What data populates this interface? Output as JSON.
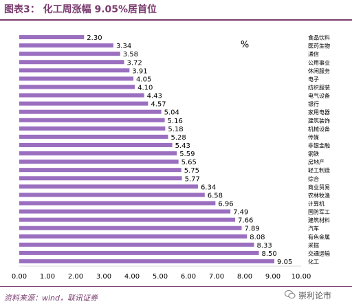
{
  "header": {
    "title": "图表3：  化工周涨幅 9.05%居首位"
  },
  "footer": {
    "source": "资料来源：wind，联讯证券"
  },
  "watermark": {
    "text": "崇利论市",
    "icon": "wechat-icon"
  },
  "colors": {
    "bar": "#9b6fc0",
    "accent": "#7a3b6e",
    "text": "#000000"
  },
  "chart_data": {
    "type": "bar",
    "orientation": "horizontal",
    "unit_label": "%",
    "categories": [
      "食品饮料",
      "医药生物",
      "通信",
      "公用事业",
      "休闲服务",
      "电子",
      "纺织服装",
      "电气设备",
      "银行",
      "家用电器",
      "建筑装饰",
      "机械设备",
      "传媒",
      "非银金融",
      "钢铁",
      "房地产",
      "轻工制造",
      "综合",
      "商业贸易",
      "农林牧渔",
      "计算机",
      "国防军工",
      "建筑材料",
      "汽车",
      "有色金属",
      "采掘",
      "交通运输",
      "化工"
    ],
    "values": [
      2.3,
      3.34,
      3.58,
      3.72,
      3.91,
      4.05,
      4.1,
      4.43,
      4.57,
      5.04,
      5.16,
      5.18,
      5.28,
      5.43,
      5.59,
      5.65,
      5.75,
      5.77,
      6.34,
      6.58,
      6.96,
      7.49,
      7.66,
      7.89,
      8.08,
      8.33,
      8.5,
      9.05
    ],
    "xlim": [
      0,
      10
    ],
    "xticks": [
      "0.00",
      "1.00",
      "2.00",
      "3.00",
      "4.00",
      "5.00",
      "6.00",
      "7.00",
      "8.00",
      "9.00",
      "10.00"
    ],
    "grid": false,
    "data_labels": true
  }
}
